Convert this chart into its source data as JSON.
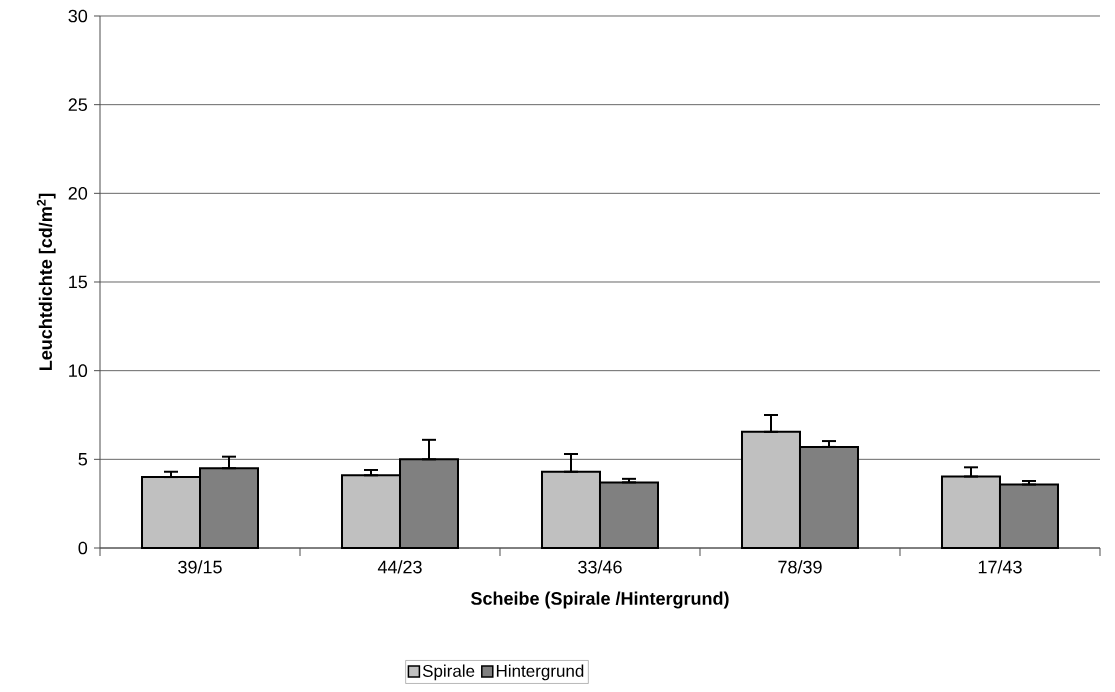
{
  "chart_data": {
    "type": "bar",
    "xlabel": "Scheibe (Spirale /Hintergrund)",
    "ylabel": "Leuchtdichte [cd/m$^{2}$]",
    "categories": [
      "39/15",
      "44/23",
      "33/46",
      "78/39",
      "17/43"
    ],
    "series": [
      {
        "name": "Spirale",
        "color": "#c0c0c0",
        "values": [
          4.0,
          4.1,
          4.3,
          6.55,
          4.03
        ],
        "errors": [
          [
            4.0,
            4.3
          ],
          [
            4.1,
            4.4
          ],
          [
            4.3,
            5.3
          ],
          [
            6.55,
            7.5
          ],
          [
            4.03,
            4.55
          ]
        ]
      },
      {
        "name": "Hintergrund",
        "color": "#808080",
        "values": [
          4.5,
          5.0,
          3.7,
          5.7,
          3.58
        ],
        "errors": [
          [
            4.5,
            5.15
          ],
          [
            5.0,
            6.1
          ],
          [
            3.7,
            3.9
          ],
          [
            5.7,
            6.03
          ],
          [
            3.58,
            3.78
          ]
        ]
      }
    ],
    "ylim": [
      0,
      30
    ],
    "yticks": [
      0,
      5,
      10,
      15,
      20,
      25,
      30
    ],
    "grid": "y",
    "legend": "bottom"
  }
}
